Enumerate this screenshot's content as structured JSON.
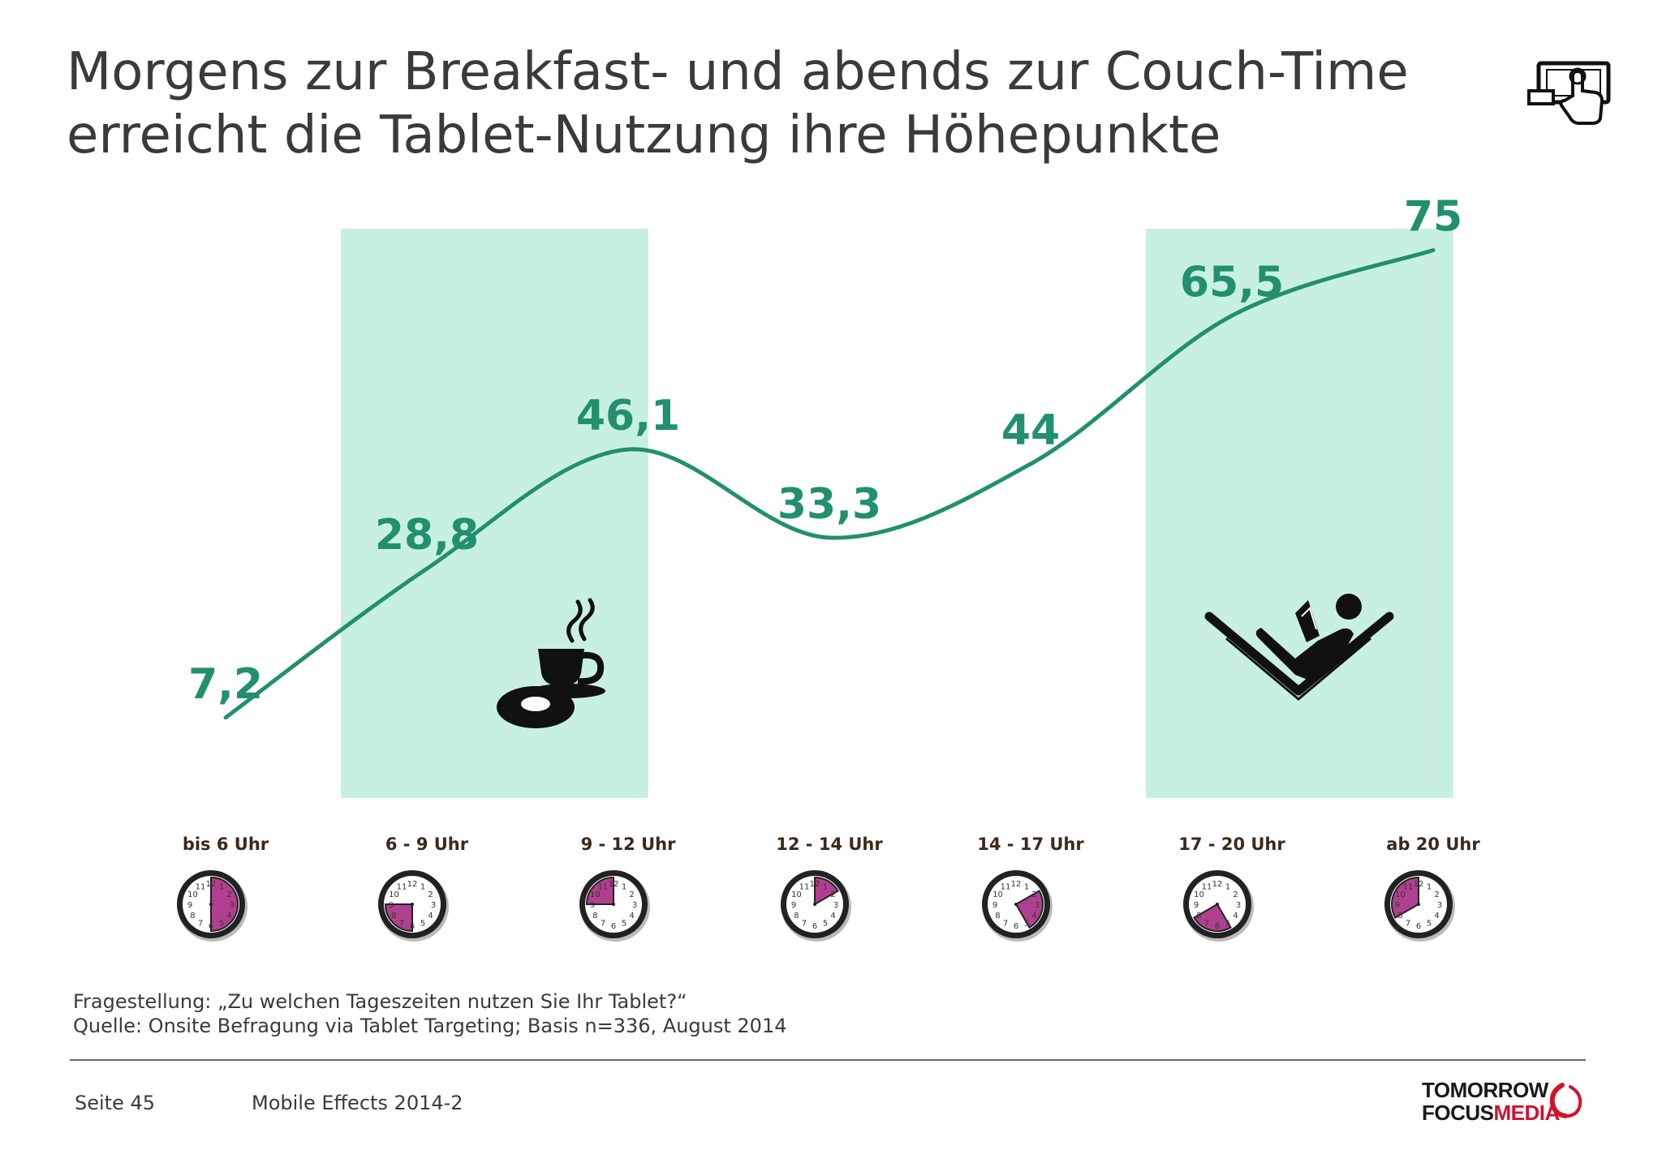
{
  "title": {
    "line1": "Morgens zur Breakfast- und abends zur Couch-Time",
    "line2": "erreicht die Tablet-Nutzung ihre Höhepunkte"
  },
  "colors": {
    "line": "#228f6e",
    "value_label": "#228f6e",
    "highlight": "#c8f0e2",
    "clock_wedge": "#b0408f",
    "title_text": "#3a3a3a",
    "brand_red": "#d0122c"
  },
  "icons": {
    "header": "tablet-touch-icon",
    "breakfast": "coffee-donut-icon",
    "couch": "reclining-reader-icon"
  },
  "chart_data": {
    "type": "line",
    "categories": [
      "bis 6 Uhr",
      "6 - 9 Uhr",
      "9 - 12 Uhr",
      "12 - 14 Uhr",
      "14 - 17 Uhr",
      "17 - 20 Uhr",
      "ab 20 Uhr"
    ],
    "values": [
      7.2,
      28.8,
      46.1,
      33.3,
      44,
      65.5,
      75
    ],
    "value_labels": [
      "7,2",
      "28,8",
      "46,1",
      "33,3",
      "44",
      "65,5",
      "75"
    ],
    "clock_ranges": [
      [
        0,
        6
      ],
      [
        6,
        9
      ],
      [
        9,
        12
      ],
      [
        12,
        14
      ],
      [
        14,
        17
      ],
      [
        17,
        20
      ],
      [
        20,
        24
      ]
    ],
    "highlighted_categories": [
      "6 - 9 Uhr",
      "9 - 12 Uhr",
      "17 - 20 Uhr",
      "ab 20 Uhr"
    ],
    "ylim": [
      0,
      80
    ],
    "grid": false,
    "legend": "none",
    "title": "",
    "xlabel": "",
    "ylabel": ""
  },
  "clock_face": {
    "numbers": [
      "12",
      "1",
      "2",
      "3",
      "4",
      "5",
      "6",
      "7",
      "8",
      "9",
      "10",
      "11"
    ]
  },
  "source": {
    "question": "Fragestellung: „Zu welchen Tageszeiten nutzen Sie Ihr Tablet?“",
    "basis": "Quelle: Onsite Befragung via Tablet Targeting; Basis n=336, August 2014"
  },
  "footer": {
    "page": "Seite 45",
    "report": "Mobile Effects 2014-2",
    "brand_line1": "TOMORROW",
    "brand_focus": "FOCUS",
    "brand_media": "MEDIA"
  }
}
